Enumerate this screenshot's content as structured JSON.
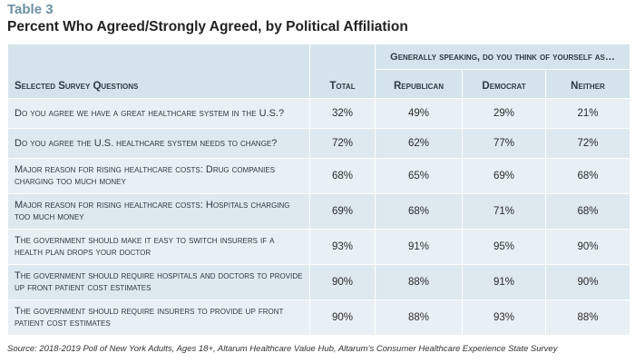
{
  "table_label": "Table 3",
  "title": "Percent Who Agreed/Strongly Agreed, by Political Affiliation",
  "headers": {
    "question": "Selected Survey Questions",
    "total": "Total",
    "group": "Generally speaking, do you think of yourself as…",
    "republican": "Republican",
    "democrat": "Democrat",
    "neither": "Neither"
  },
  "rows": [
    {
      "question": "Do you agree we have a great healthcare system in the U.S.?",
      "total": "32%",
      "republican": "49%",
      "democrat": "29%",
      "neither": "21%"
    },
    {
      "question": "Do you agree the U.S. healthcare system needs to change?",
      "total": "72%",
      "republican": "62%",
      "democrat": "77%",
      "neither": "72%"
    },
    {
      "question": "Major reason for rising healthcare costs: Drug companies charging too much money",
      "total": "68%",
      "republican": "65%",
      "democrat": "69%",
      "neither": "68%"
    },
    {
      "question": "Major reason for rising healthcare costs: Hospitals charging too much money",
      "total": "69%",
      "republican": "68%",
      "democrat": "71%",
      "neither": "68%"
    },
    {
      "question": "The government should make it easy to switch insurers if a health plan drops your doctor",
      "total": "93%",
      "republican": "91%",
      "democrat": "95%",
      "neither": "90%"
    },
    {
      "question": "The government should require hospitals and doctors to provide up front patient cost estimates",
      "total": "90%",
      "republican": "88%",
      "democrat": "91%",
      "neither": "90%"
    },
    {
      "question": "The government should require insurers to provide up front patient cost estimates",
      "total": "90%",
      "republican": "88%",
      "democrat": "93%",
      "neither": "88%"
    }
  ],
  "source": "Source: 2018-2019 Poll of New York Adults, Ages 18+, Altarum Healthcare Value Hub, Altarum’s Consumer Healthcare Experience State Survey"
}
